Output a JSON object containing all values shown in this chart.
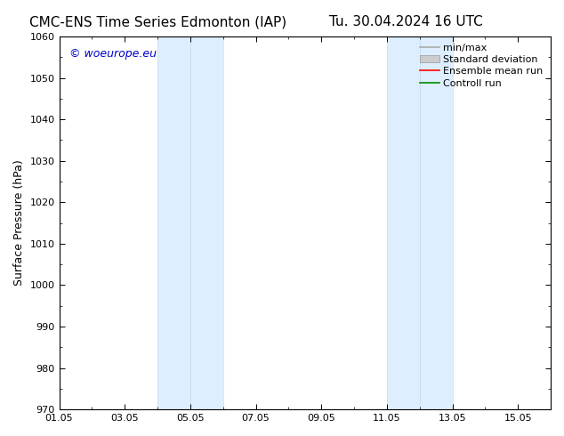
{
  "title_left": "CMC-ENS Time Series Edmonton (IAP)",
  "title_right": "Tu. 30.04.2024 16 UTC",
  "ylabel": "Surface Pressure (hPa)",
  "ylim": [
    970,
    1060
  ],
  "yticks": [
    970,
    980,
    990,
    1000,
    1010,
    1020,
    1030,
    1040,
    1050,
    1060
  ],
  "xlim": [
    0,
    15
  ],
  "xtick_labels": [
    "01.05",
    "03.05",
    "05.05",
    "07.05",
    "09.05",
    "11.05",
    "13.05",
    "15.05"
  ],
  "xtick_positions": [
    0,
    2,
    4,
    6,
    8,
    10,
    12,
    14
  ],
  "blue_bands": [
    {
      "xstart": 3.0,
      "xend": 4.0
    },
    {
      "xstart": 4.0,
      "xend": 5.0
    },
    {
      "xstart": 10.0,
      "xend": 11.0
    },
    {
      "xstart": 11.0,
      "xend": 12.0
    }
  ],
  "blue_band_color": "#ddeeff",
  "blue_band_border_color": "#c8ddf0",
  "background_color": "#ffffff",
  "legend_entries": [
    {
      "label": "min/max",
      "color": "#aaaaaa",
      "lw": 1.2,
      "style": "line"
    },
    {
      "label": "Standard deviation",
      "color": "#cccccc",
      "lw": 8,
      "style": "thick"
    },
    {
      "label": "Ensemble mean run",
      "color": "#ff0000",
      "lw": 1.2,
      "style": "line"
    },
    {
      "label": "Controll run",
      "color": "#008800",
      "lw": 1.2,
      "style": "line"
    }
  ],
  "watermark": "© woeurope.eu",
  "title_fontsize": 11,
  "axis_label_fontsize": 9,
  "tick_fontsize": 8,
  "legend_fontsize": 8,
  "watermark_fontsize": 9,
  "fig_width": 6.34,
  "fig_height": 4.9,
  "dpi": 100
}
